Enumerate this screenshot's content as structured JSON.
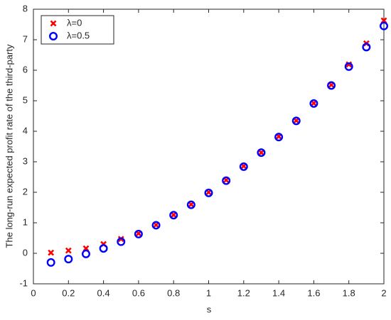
{
  "chart_data": {
    "type": "scatter",
    "xlabel": "s",
    "ylabel": "The long-run expected profit rate of the third-party",
    "x": [
      0.1,
      0.2,
      0.3,
      0.4,
      0.5,
      0.6,
      0.7,
      0.8,
      0.9,
      1.0,
      1.1,
      1.2,
      1.3,
      1.4,
      1.5,
      1.6,
      1.7,
      1.8,
      1.9,
      2.0
    ],
    "series": [
      {
        "name": "λ=0",
        "color": "#ff0000",
        "marker": "x",
        "values": [
          0.02,
          0.09,
          0.16,
          0.3,
          0.47,
          0.65,
          0.93,
          1.26,
          1.6,
          2.0,
          2.4,
          2.86,
          3.3,
          3.83,
          4.35,
          4.92,
          5.52,
          6.19,
          6.88,
          7.63
        ]
      },
      {
        "name": "λ=0.5",
        "color": "#0000ff",
        "marker": "o",
        "values": [
          -0.3,
          -0.19,
          -0.02,
          0.16,
          0.38,
          0.63,
          0.92,
          1.25,
          1.59,
          1.98,
          2.38,
          2.84,
          3.3,
          3.81,
          4.34,
          4.91,
          5.5,
          6.12,
          6.76,
          7.45
        ]
      }
    ],
    "xlim": [
      0,
      2
    ],
    "xticks": [
      0,
      0.2,
      0.4,
      0.6,
      0.8,
      1,
      1.2,
      1.4,
      1.6,
      1.8,
      2
    ],
    "ylim": [
      -1,
      8
    ],
    "yticks": [
      -1,
      0,
      1,
      2,
      3,
      4,
      5,
      6,
      7,
      8
    ],
    "grid": false,
    "legend": "upper-left"
  }
}
